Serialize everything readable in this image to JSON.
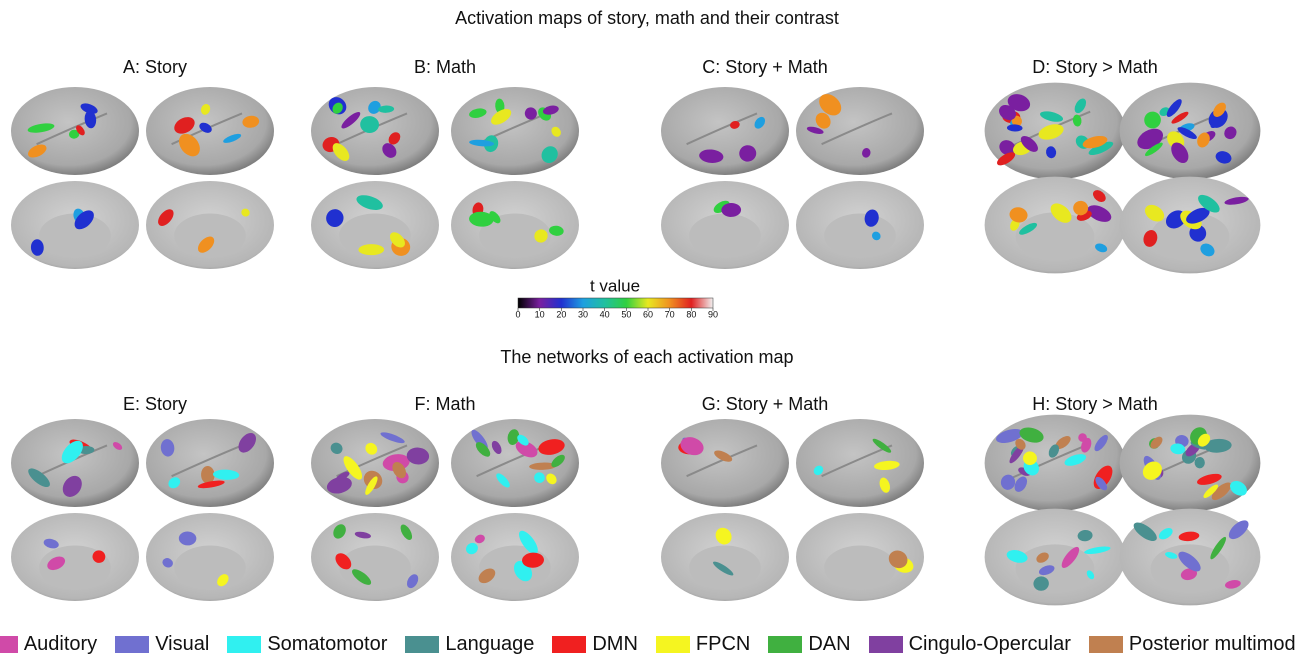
{
  "title": "Activation maps of story, math and their contrast",
  "panels_top": [
    "A: Story",
    "B: Math",
    "C: Story + Math",
    "D: Story > Math"
  ],
  "colorbar": {
    "label": "t value",
    "ticks": [
      0,
      10,
      20,
      30,
      40,
      50,
      60,
      70,
      80,
      90
    ],
    "colors": [
      "#000000",
      "#7a1fa0",
      "#2030d0",
      "#1f9fe0",
      "#20c0a0",
      "#30d040",
      "#e8e820",
      "#f09020",
      "#e02020",
      "#f0f0f0"
    ]
  },
  "subtitle": "The networks of each activation map",
  "panels_bottom": [
    "E: Story",
    "F: Math",
    "G: Story + Math",
    "H: Story > Math"
  ],
  "legend": [
    {
      "name": "Auditory",
      "color": "#d04aa8"
    },
    {
      "name": "Visual",
      "color": "#7070d0"
    },
    {
      "name": "Somatomotor",
      "color": "#30f0f0"
    },
    {
      "name": "Language",
      "color": "#4a9090"
    },
    {
      "name": "DMN",
      "color": "#f02020"
    },
    {
      "name": "FPCN",
      "color": "#f5f520"
    },
    {
      "name": "DAN",
      "color": "#40b040"
    },
    {
      "name": "Cingulo-Opercular",
      "color": "#8040a0"
    },
    {
      "name": "Posterior multimodal",
      "color": "#c08050"
    }
  ]
}
